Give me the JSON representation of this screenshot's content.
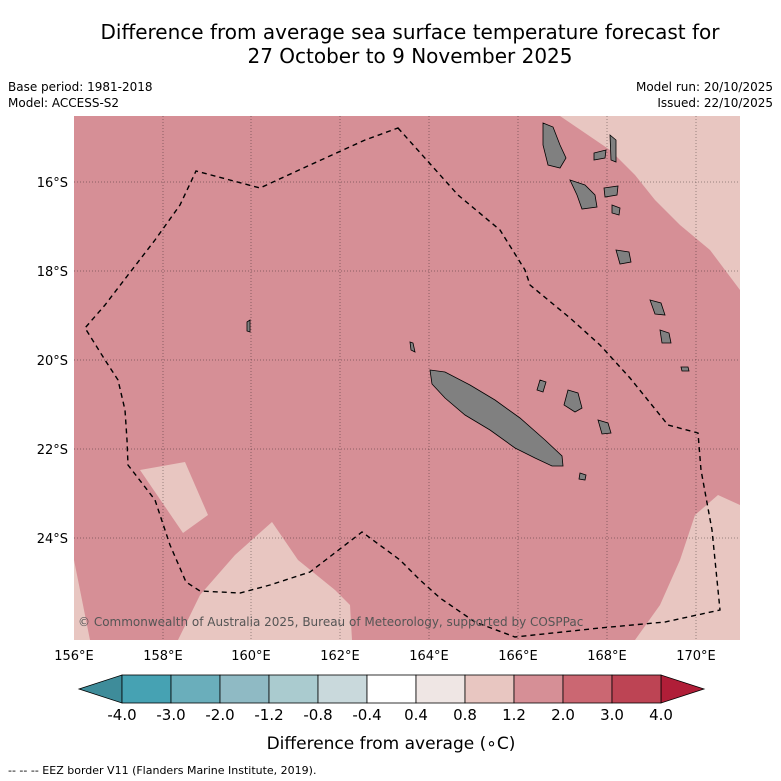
{
  "title_line1": "Difference from average sea surface temperature forecast for",
  "title_line2": "27 October to 9 November 2025",
  "base_period": "Base period: 1981-2018",
  "model": "Model: ACCESS-S2",
  "model_run": "Model run: 20/10/2025",
  "issued": "Issued: 22/10/2025",
  "copyright": "© Commonwealth of Australia 2025, Bureau of Meteorology, supported by COSPPac",
  "lat_labels": [
    "16°S",
    "18°S",
    "20°S",
    "22°S",
    "24°S"
  ],
  "lon_labels": [
    "156°E",
    "158°E",
    "160°E",
    "162°E",
    "164°E",
    "166°E",
    "168°E",
    "170°E"
  ],
  "colorbar": {
    "ticks": [
      "-4.0",
      "-3.0",
      "-2.0",
      "-1.2",
      "-0.8",
      "-0.4",
      "0.4",
      "0.8",
      "1.2",
      "2.0",
      "3.0",
      "4.0"
    ],
    "colors": [
      "#46a2b3",
      "#6aaebb",
      "#8fbac4",
      "#aacbcf",
      "#c9d9dc",
      "#ffffff",
      "#efe6e4",
      "#e8c6c1",
      "#d68f96",
      "#cb6772",
      "#bd4454"
    ],
    "low_color": "#3e8c9a",
    "high_color": "#b01e38",
    "label": "Difference from average (∘C)"
  },
  "legend": {
    "eez": "--  --  -- EEZ border V11 (Flanders Marine Institute, 2019)."
  }
}
